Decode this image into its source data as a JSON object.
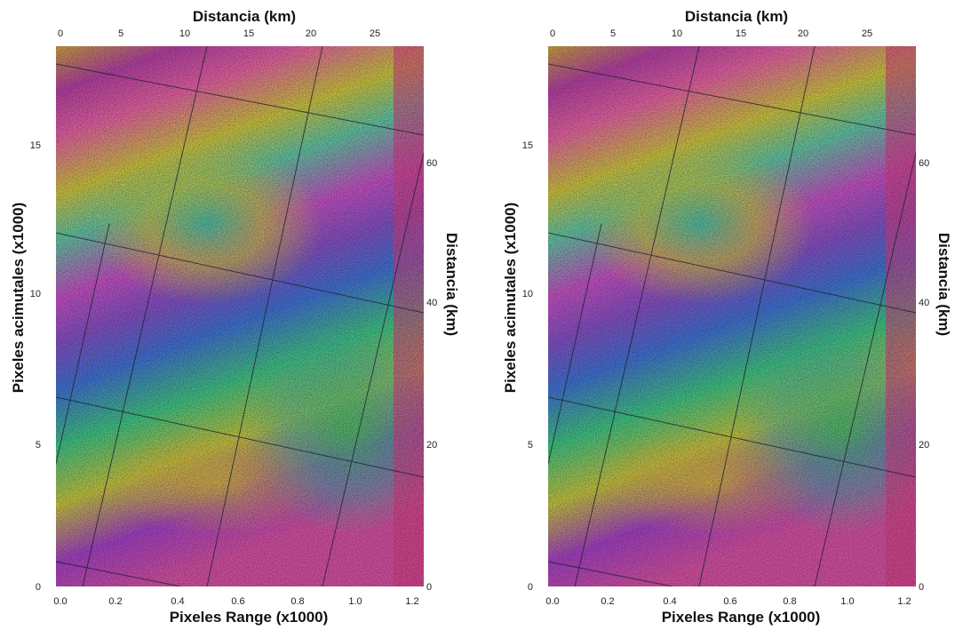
{
  "panels": [
    {
      "top_axis": {
        "label": "Distancia (km)",
        "ticks": [
          "0",
          "5",
          "10",
          "15",
          "20",
          "25"
        ]
      },
      "left_axis": {
        "label": "Pixeles acimutales (x1000)",
        "ticks": [
          "15",
          "10",
          "5",
          "0"
        ]
      },
      "right_axis": {
        "label": "Distancia (km)",
        "ticks": [
          "60",
          "40",
          "20",
          "0"
        ]
      },
      "bottom_axis": {
        "label": "Pixeles Range (x1000)",
        "ticks": [
          "0.0",
          "0.2",
          "0.4",
          "0.6",
          "0.8",
          "1.0",
          "1.2"
        ]
      }
    },
    {
      "top_axis": {
        "label": "Distancia (km)",
        "ticks": [
          "0",
          "5",
          "10",
          "15",
          "20",
          "25"
        ]
      },
      "left_axis": {
        "label": "Pixeles acimutales (x1000)",
        "ticks": [
          "15",
          "10",
          "5",
          "0"
        ]
      },
      "right_axis": {
        "label": "Distancia (km)",
        "ticks": [
          "60",
          "40",
          "20",
          "0"
        ]
      },
      "bottom_axis": {
        "label": "Pixeles Range (x1000)",
        "ticks": [
          "0.0",
          "0.2",
          "0.4",
          "0.6",
          "0.8",
          "1.0",
          "1.2"
        ]
      }
    }
  ]
}
